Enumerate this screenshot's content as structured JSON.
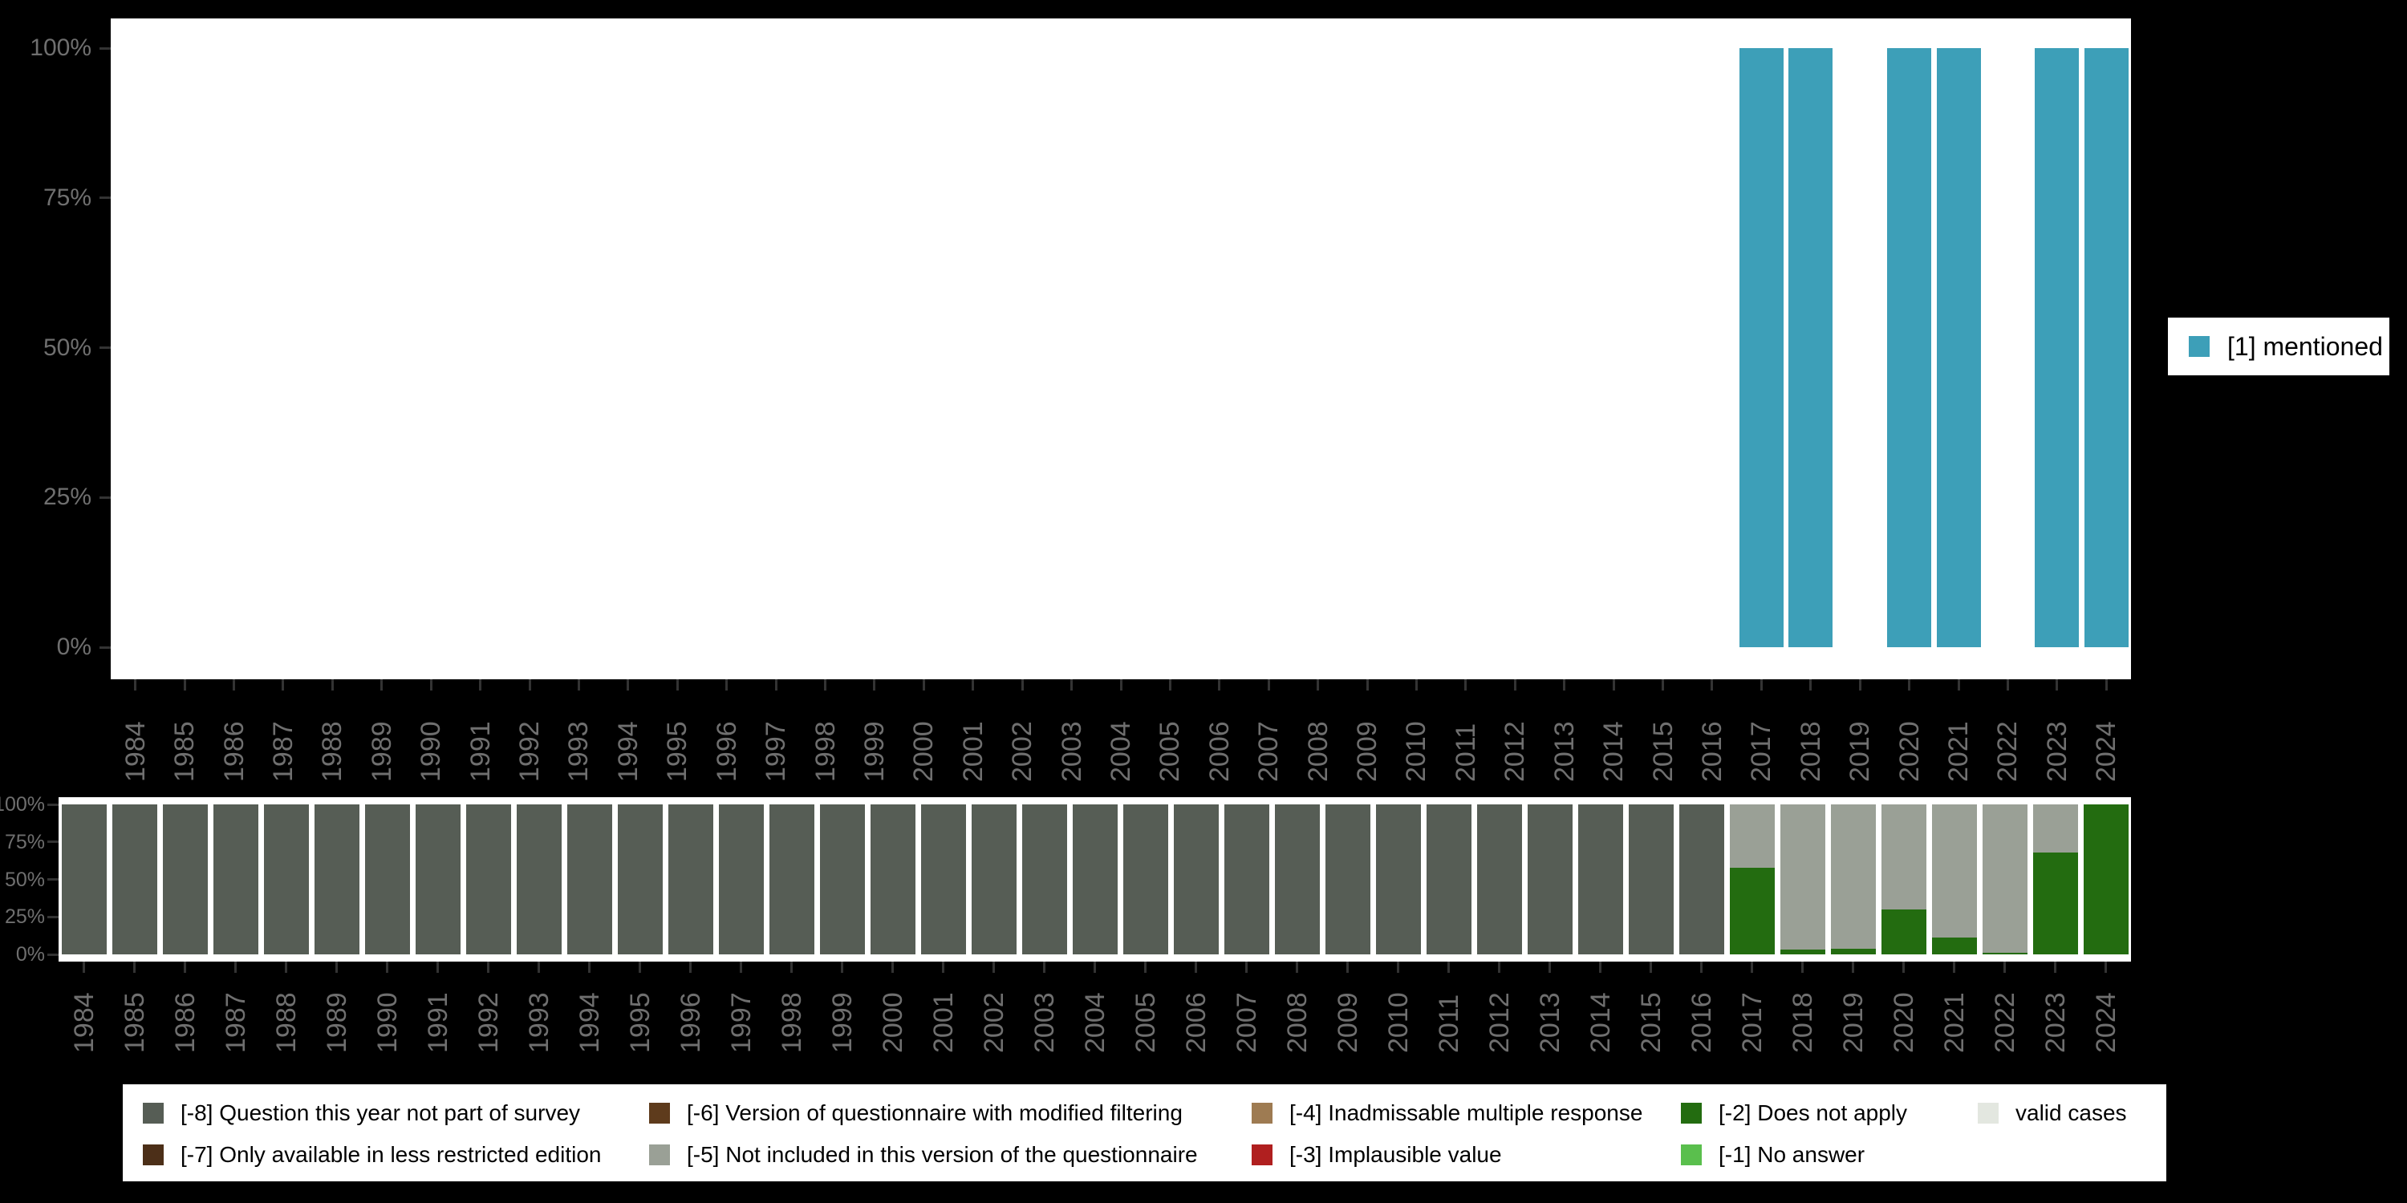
{
  "colors": {
    "background": "#000000",
    "panel": "#FFFFFF",
    "axis_text": "#6F6F6F",
    "tick": "#333333",
    "legend_text": "#000000"
  },
  "legend_top": {
    "label": "[1] mentioned",
    "color": "#3D9FB8"
  },
  "legend_bottom": {
    "items": [
      {
        "label": "[-8] Question this year not part of survey",
        "color": "#565D55"
      },
      {
        "label": "[-7] Only available in less restricted edition",
        "color": "#4C2F18"
      },
      {
        "label": "[-6] Version of questionnaire with modified filtering",
        "color": "#5E3B1C"
      },
      {
        "label": "[-5] Not included in this version of the questionnaire",
        "color": "#9AA096"
      },
      {
        "label": "[-4] Inadmissable multiple response",
        "color": "#9E7B52"
      },
      {
        "label": "[-3] Implausible value",
        "color": "#B01F1F"
      },
      {
        "label": "[-2] Does not apply",
        "color": "#236C10"
      },
      {
        "label": "[-1] No answer",
        "color": "#5ABF4D"
      },
      {
        "label": "valid cases",
        "color": "#E3E7E0"
      }
    ]
  },
  "chart_data": [
    {
      "type": "bar",
      "panel": "top",
      "title": "",
      "xlabel": "",
      "ylabel": "",
      "ylim": [
        0,
        100
      ],
      "grid": false,
      "legend_position": "right",
      "yticks": [
        {
          "value": 100,
          "label": "100%"
        },
        {
          "value": 75,
          "label": "75%"
        },
        {
          "value": 50,
          "label": "50%"
        },
        {
          "value": 25,
          "label": "25%"
        },
        {
          "value": 0,
          "label": "0%"
        }
      ],
      "categories": [
        "1984",
        "1985",
        "1986",
        "1987",
        "1988",
        "1989",
        "1990",
        "1991",
        "1992",
        "1993",
        "1994",
        "1995",
        "1996",
        "1997",
        "1998",
        "1999",
        "2000",
        "2001",
        "2002",
        "2003",
        "2004",
        "2005",
        "2006",
        "2007",
        "2008",
        "2009",
        "2010",
        "2011",
        "2012",
        "2013",
        "2014",
        "2015",
        "2016",
        "2017",
        "2018",
        "2019",
        "2020",
        "2021",
        "2022",
        "2023",
        "2024"
      ],
      "series": [
        {
          "name": "[1] mentioned",
          "color": "#3D9FB8",
          "values": [
            null,
            null,
            null,
            null,
            null,
            null,
            null,
            null,
            null,
            null,
            null,
            null,
            null,
            null,
            null,
            null,
            null,
            null,
            null,
            null,
            null,
            null,
            null,
            null,
            null,
            null,
            null,
            null,
            null,
            null,
            null,
            null,
            null,
            100,
            100,
            null,
            100,
            100,
            null,
            100,
            100
          ]
        }
      ]
    },
    {
      "type": "bar",
      "stacked": true,
      "panel": "bottom",
      "title": "",
      "xlabel": "",
      "ylabel": "",
      "ylim": [
        0,
        100
      ],
      "grid": false,
      "legend_position": "bottom",
      "yticks": [
        {
          "value": 100,
          "label": "100%"
        },
        {
          "value": 75,
          "label": "75%"
        },
        {
          "value": 50,
          "label": "50%"
        },
        {
          "value": 25,
          "label": "25%"
        },
        {
          "value": 0,
          "label": "0%"
        }
      ],
      "categories": [
        "1984",
        "1985",
        "1986",
        "1987",
        "1988",
        "1989",
        "1990",
        "1991",
        "1992",
        "1993",
        "1994",
        "1995",
        "1996",
        "1997",
        "1998",
        "1999",
        "2000",
        "2001",
        "2002",
        "2003",
        "2004",
        "2005",
        "2006",
        "2007",
        "2008",
        "2009",
        "2010",
        "2011",
        "2012",
        "2013",
        "2014",
        "2015",
        "2016",
        "2017",
        "2018",
        "2019",
        "2020",
        "2021",
        "2022",
        "2023",
        "2024"
      ],
      "series": [
        {
          "name": "[-8] Question this year not part of survey",
          "color": "#565D55",
          "values": [
            100,
            100,
            100,
            100,
            100,
            100,
            100,
            100,
            100,
            100,
            100,
            100,
            100,
            100,
            100,
            100,
            100,
            100,
            100,
            100,
            100,
            100,
            100,
            100,
            100,
            100,
            100,
            100,
            100,
            100,
            100,
            100,
            100,
            0,
            0,
            0,
            0,
            0,
            0,
            0,
            0
          ]
        },
        {
          "name": "[-2] Does not apply",
          "color": "#236C10",
          "values": [
            0,
            0,
            0,
            0,
            0,
            0,
            0,
            0,
            0,
            0,
            0,
            0,
            0,
            0,
            0,
            0,
            0,
            0,
            0,
            0,
            0,
            0,
            0,
            0,
            0,
            0,
            0,
            0,
            0,
            0,
            0,
            0,
            0,
            58,
            3,
            4,
            30,
            11,
            1,
            68,
            100
          ]
        },
        {
          "name": "[-5] Not included in this version of the questionnaire",
          "color": "#9AA096",
          "values": [
            0,
            0,
            0,
            0,
            0,
            0,
            0,
            0,
            0,
            0,
            0,
            0,
            0,
            0,
            0,
            0,
            0,
            0,
            0,
            0,
            0,
            0,
            0,
            0,
            0,
            0,
            0,
            0,
            0,
            0,
            0,
            0,
            0,
            42,
            97,
            96,
            70,
            89,
            99,
            32,
            0
          ]
        }
      ]
    }
  ]
}
